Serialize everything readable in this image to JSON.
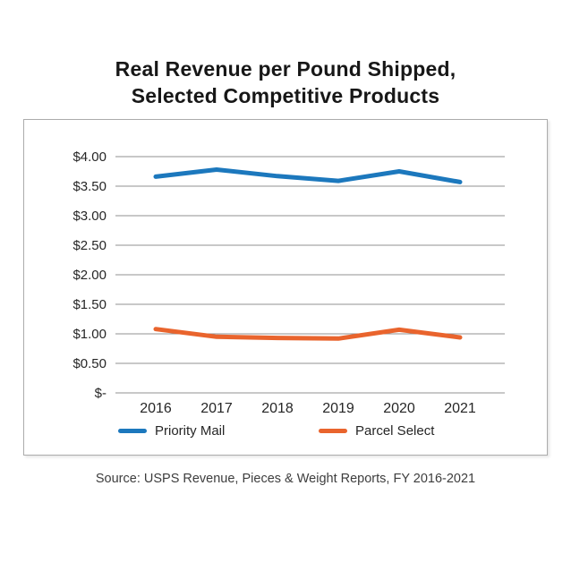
{
  "page": {
    "title_line1": "Real Revenue per Pound Shipped,",
    "title_line2": "Selected Competitive Products",
    "source": "Source: USPS Revenue, Pieces & Weight Reports, FY 2016-2021"
  },
  "colors": {
    "priority_mail": "#1C78BD",
    "parcel_select": "#E9642D",
    "gridline": "#919191",
    "axis_text": "#262626",
    "frame_border": "#ACACAC"
  },
  "chart_data": {
    "type": "line",
    "title": "Real Revenue per Pound Shipped, Selected Competitive Products",
    "categories": [
      "2016",
      "2017",
      "2018",
      "2019",
      "2020",
      "2021"
    ],
    "series": [
      {
        "name": "Priority Mail",
        "color": "#1C78BD",
        "values": [
          3.66,
          3.78,
          3.67,
          3.59,
          3.75,
          3.57
        ]
      },
      {
        "name": "Parcel Select",
        "color": "#E9642D",
        "values": [
          1.08,
          0.95,
          0.93,
          0.92,
          1.07,
          0.94
        ]
      }
    ],
    "xlabel": "",
    "ylabel": "",
    "ylim": [
      0,
      4.0
    ],
    "ytick_step": 0.5,
    "ytick_labels_top_down": [
      "$4.00",
      "$3.50",
      "$3.00",
      "$2.50",
      "$2.00",
      "$1.50",
      "$1.00",
      "$0.50",
      "$-"
    ],
    "grid": true,
    "legend_position": "bottom"
  }
}
